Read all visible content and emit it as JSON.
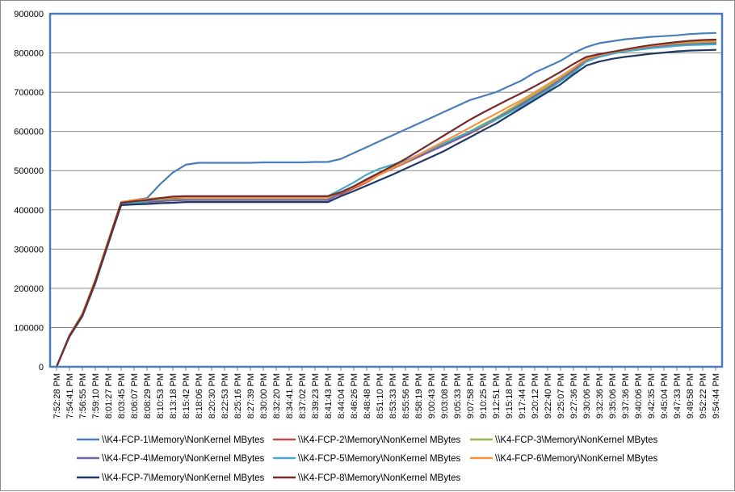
{
  "chart_data": {
    "type": "line",
    "title": "",
    "xlabel": "",
    "ylabel": "",
    "ylim": [
      0,
      900000
    ],
    "yticks": [
      "0",
      "100000",
      "200000",
      "300000",
      "400000",
      "500000",
      "600000",
      "700000",
      "800000",
      "900000"
    ],
    "grid": true,
    "legend_position": "bottom",
    "x": [
      "7:52:28 PM",
      "7:54:41 PM",
      "7:56:55 PM",
      "7:59:10 PM",
      "8:01:27 PM",
      "8:03:45 PM",
      "8:06:07 PM",
      "8:08:29 PM",
      "8:10:53 PM",
      "8:13:18 PM",
      "8:15:42 PM",
      "8:18:06 PM",
      "8:20:30 PM",
      "8:22:53 PM",
      "8:25:16 PM",
      "8:27:39 PM",
      "8:30:00 PM",
      "8:32:20 PM",
      "8:34:41 PM",
      "8:37:02 PM",
      "8:39:23 PM",
      "8:41:43 PM",
      "8:44:04 PM",
      "8:46:26 PM",
      "8:48:48 PM",
      "8:51:10 PM",
      "8:53:33 PM",
      "8:55:56 PM",
      "8:58:19 PM",
      "9:00:43 PM",
      "9:03:08 PM",
      "9:05:33 PM",
      "9:07:58 PM",
      "9:10:25 PM",
      "9:12:51 PM",
      "9:15:18 PM",
      "9:17:44 PM",
      "9:20:12 PM",
      "9:22:40 PM",
      "9:25:07 PM",
      "9:27:36 PM",
      "9:30:06 PM",
      "9:32:36 PM",
      "9:35:06 PM",
      "9:37:36 PM",
      "9:40:06 PM",
      "9:42:35 PM",
      "9:45:04 PM",
      "9:47:33 PM",
      "9:49:58 PM",
      "9:52:22 PM",
      "9:54:44 PM"
    ],
    "series": [
      {
        "name": "\\\\K4-FCP-1\\Memory\\NonKernel MBytes",
        "color": "#4a7ebb",
        "values": [
          0,
          80000,
          135000,
          220000,
          320000,
          420000,
          425000,
          430000,
          465000,
          495000,
          515000,
          520000,
          520000,
          520000,
          520000,
          520000,
          521000,
          521000,
          521000,
          521000,
          522000,
          522000,
          530000,
          545000,
          560000,
          575000,
          590000,
          605000,
          620000,
          635000,
          650000,
          665000,
          680000,
          690000,
          700000,
          715000,
          730000,
          750000,
          765000,
          780000,
          800000,
          815000,
          825000,
          830000,
          835000,
          838000,
          841000,
          843000,
          845000,
          848000,
          850000,
          851000
        ]
      },
      {
        "name": "\\\\K4-FCP-2\\Memory\\NonKernel MBytes",
        "color": "#be4b48",
        "values": [
          0,
          78000,
          130000,
          215000,
          315000,
          415000,
          420000,
          425000,
          428000,
          430000,
          432000,
          432000,
          432000,
          432000,
          432000,
          432000,
          432000,
          432000,
          432000,
          432000,
          432000,
          432000,
          440000,
          455000,
          470000,
          490000,
          505000,
          520000,
          535000,
          550000,
          565000,
          580000,
          595000,
          612000,
          630000,
          650000,
          670000,
          690000,
          712000,
          735000,
          758000,
          780000,
          790000,
          798000,
          805000,
          810000,
          815000,
          818000,
          821000,
          823000,
          825000,
          826000
        ]
      },
      {
        "name": "\\\\K4-FCP-3\\Memory\\NonKernel MBytes",
        "color": "#98b954",
        "values": [
          0,
          80000,
          132000,
          218000,
          318000,
          418000,
          420000,
          422000,
          425000,
          426000,
          427000,
          427000,
          427000,
          427000,
          427000,
          427000,
          427000,
          427000,
          427000,
          427000,
          427000,
          427000,
          445000,
          460000,
          475000,
          492000,
          508000,
          523000,
          538000,
          553000,
          568000,
          585000,
          600000,
          618000,
          635000,
          655000,
          675000,
          695000,
          715000,
          735000,
          758000,
          785000,
          795000,
          802000,
          808000,
          813000,
          818000,
          821000,
          824000,
          826000,
          828000,
          829000
        ]
      },
      {
        "name": "\\\\K4-FCP-4\\Memory\\NonKernel MBytes",
        "color": "#7d60a0",
        "values": [
          0,
          78000,
          130000,
          215000,
          315000,
          415000,
          418000,
          420000,
          422000,
          424000,
          425000,
          425000,
          425000,
          425000,
          425000,
          425000,
          425000,
          425000,
          425000,
          425000,
          425000,
          425000,
          442000,
          458000,
          473000,
          490000,
          505000,
          520000,
          535000,
          550000,
          565000,
          580000,
          597000,
          615000,
          632000,
          650000,
          670000,
          690000,
          710000,
          732000,
          755000,
          782000,
          792000,
          799000,
          805000,
          810000,
          814000,
          817000,
          820000,
          822000,
          823000,
          824000
        ]
      },
      {
        "name": "\\\\K4-FCP-5\\Memory\\NonKernel MBytes",
        "color": "#46aac5",
        "values": [
          0,
          76000,
          128000,
          212000,
          312000,
          415000,
          418000,
          422000,
          430000,
          434000,
          435000,
          435000,
          435000,
          435000,
          435000,
          435000,
          435000,
          435000,
          435000,
          435000,
          435000,
          435000,
          452000,
          470000,
          490000,
          505000,
          515000,
          525000,
          540000,
          555000,
          570000,
          585000,
          600000,
          615000,
          630000,
          647000,
          665000,
          685000,
          705000,
          728000,
          750000,
          778000,
          790000,
          798000,
          804000,
          808000,
          812000,
          815000,
          818000,
          820000,
          821000,
          822000
        ]
      },
      {
        "name": "\\\\K4-FCP-6\\Memory\\NonKernel MBytes",
        "color": "#f69240",
        "values": [
          0,
          80000,
          135000,
          222000,
          322000,
          420000,
          425000,
          428000,
          430000,
          432000,
          433000,
          433000,
          433000,
          433000,
          433000,
          433000,
          433000,
          433000,
          433000,
          433000,
          433000,
          433000,
          445000,
          458000,
          472000,
          490000,
          506000,
          522000,
          540000,
          558000,
          575000,
          592000,
          610000,
          628000,
          645000,
          663000,
          680000,
          700000,
          720000,
          740000,
          762000,
          785000,
          795000,
          802000,
          808000,
          813000,
          818000,
          822000,
          826000,
          829000,
          831000,
          832000
        ]
      },
      {
        "name": "\\\\K4-FCP-7\\Memory\\NonKernel MBytes",
        "color": "#1f3864",
        "values": [
          0,
          78000,
          130000,
          215000,
          315000,
          412000,
          414000,
          415000,
          417000,
          418000,
          420000,
          420000,
          420000,
          420000,
          420000,
          420000,
          420000,
          420000,
          420000,
          420000,
          420000,
          420000,
          435000,
          448000,
          462000,
          476000,
          490000,
          505000,
          520000,
          535000,
          550000,
          568000,
          585000,
          603000,
          620000,
          640000,
          660000,
          680000,
          700000,
          720000,
          745000,
          768000,
          778000,
          785000,
          790000,
          794000,
          798000,
          801000,
          804000,
          806000,
          807000,
          808000
        ]
      },
      {
        "name": "\\\\K4-FCP-8\\Memory\\NonKernel MBytes",
        "color": "#772c2a",
        "values": [
          0,
          79000,
          132000,
          218000,
          318000,
          418000,
          422000,
          425000,
          430000,
          434000,
          435000,
          435000,
          435000,
          435000,
          435000,
          435000,
          435000,
          435000,
          435000,
          435000,
          435000,
          435000,
          445000,
          460000,
          478000,
          495000,
          512000,
          530000,
          550000,
          570000,
          590000,
          610000,
          630000,
          648000,
          665000,
          682000,
          698000,
          715000,
          733000,
          752000,
          772000,
          790000,
          797000,
          803000,
          809000,
          815000,
          820000,
          824000,
          828000,
          831000,
          833000,
          834000
        ]
      }
    ]
  }
}
